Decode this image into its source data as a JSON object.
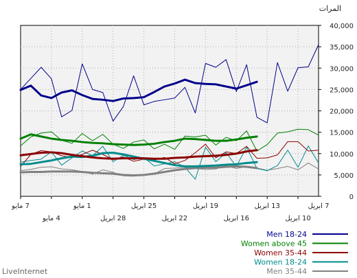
{
  "chart_data": {
    "type": "line",
    "title": "",
    "ylabel": "المرات",
    "ylim": [
      0,
      40000
    ],
    "yticks": [
      "0",
      "5,000",
      "10,000",
      "15,000",
      "20,000",
      "25,000",
      "30,000",
      "35,000",
      "40,000"
    ],
    "x_axis_direction": "right-to-left",
    "xticks_upper": [
      "7 مايو",
      "1 مايو",
      "25 ابريل",
      "19 ابريل",
      "13 ابريل",
      "7 ابريل"
    ],
    "xticks_lower": [
      "4 مايو",
      "28 ابريل",
      "22 ابريل",
      "16 ابريل",
      "10 ابريل"
    ],
    "grid": true,
    "legend_position": "bottom-right",
    "series": [
      {
        "name": "Men 18-24",
        "color": "#00008b",
        "daily": [
          35500,
          30300,
          30100,
          24600,
          31300,
          17200,
          18500,
          30800,
          24500,
          32000,
          30200,
          31100,
          19500,
          25500,
          23000,
          22600,
          22200,
          21400,
          28200,
          21000,
          17600,
          24300,
          25000,
          31000,
          20100,
          18600,
          27500,
          30200,
          27600,
          25000
        ],
        "trend": [
          null,
          null,
          null,
          null,
          null,
          null,
          26800,
          26000,
          25200,
          25700,
          26200,
          26300,
          26500,
          27300,
          26400,
          25700,
          24400,
          23200,
          23000,
          22900,
          22300,
          22600,
          22800,
          23700,
          24800,
          24300,
          23000,
          23600,
          25900,
          24900
        ]
      },
      {
        "name": "Women above 45",
        "color": "#008000",
        "daily": [
          14300,
          15600,
          15700,
          15100,
          14800,
          12100,
          10600,
          15300,
          13000,
          13800,
          12000,
          14300,
          13900,
          14100,
          11000,
          12200,
          11100,
          13200,
          12700,
          11200,
          12200,
          14500,
          13000,
          14700,
          12400,
          13100,
          15100,
          14800,
          13900,
          11800
        ],
        "trend": [
          null,
          null,
          null,
          null,
          null,
          null,
          14000,
          13700,
          13300,
          13000,
          13000,
          13200,
          13400,
          13500,
          13000,
          12700,
          12300,
          12100,
          12000,
          12100,
          12200,
          12400,
          12500,
          12700,
          13000,
          13200,
          13500,
          14000,
          14500,
          13500
        ]
      },
      {
        "name": "Women 35-44",
        "color": "#8b0000",
        "daily": [
          10800,
          10600,
          12800,
          12800,
          9700,
          9000,
          8900,
          11700,
          10000,
          10400,
          9000,
          12200,
          10200,
          8400,
          7600,
          9100,
          8500,
          8700,
          8200,
          9200,
          8600,
          9800,
          10800,
          9800,
          9100,
          9500,
          10400,
          10700,
          9800,
          7000
        ],
        "trend": [
          null,
          null,
          null,
          null,
          null,
          null,
          10800,
          10500,
          10000,
          9700,
          9500,
          9400,
          9300,
          9100,
          9000,
          8800,
          8800,
          8900,
          8900,
          8900,
          8800,
          8900,
          9100,
          9400,
          9700,
          10100,
          10300,
          10200,
          9900,
          9600
        ]
      },
      {
        "name": "Women 18-24",
        "color": "#008b8b",
        "daily": [
          7800,
          11800,
          6800,
          10800,
          7200,
          6000,
          6500,
          11500,
          7000,
          10200,
          8100,
          11500,
          4000,
          6800,
          8100,
          7600,
          7100,
          9100,
          8600,
          9600,
          8100,
          11700,
          9500,
          10600,
          9000,
          7300,
          10400,
          8700,
          8400,
          8000
        ],
        "trend": [
          null,
          null,
          null,
          null,
          null,
          null,
          8000,
          7800,
          7500,
          7400,
          7200,
          7100,
          7000,
          7000,
          7300,
          7800,
          8300,
          8800,
          9300,
          9800,
          10200,
          10100,
          9500,
          9200,
          9300,
          8900,
          8400,
          8000,
          7600,
          7500
        ]
      },
      {
        "name": "Men 35-44",
        "color": "#808080",
        "daily": [
          6400,
          7800,
          6200,
          7000,
          6500,
          6100,
          6600,
          7000,
          6500,
          7200,
          6400,
          6300,
          6500,
          6800,
          6600,
          6500,
          5200,
          5100,
          4700,
          4800,
          5600,
          6200,
          5200,
          5800,
          6200,
          6400,
          6900,
          6800,
          6300,
          6000
        ],
        "trend": [
          null,
          null,
          null,
          null,
          null,
          null,
          6600,
          6900,
          7000,
          6900,
          6700,
          6700,
          6600,
          6400,
          6100,
          5700,
          5300,
          5000,
          4900,
          5000,
          5300,
          5400,
          5500,
          5700,
          5800,
          5800,
          5800,
          5700,
          5700,
          5600
        ]
      }
    ]
  },
  "branding": {
    "text": "LiveInternet"
  }
}
